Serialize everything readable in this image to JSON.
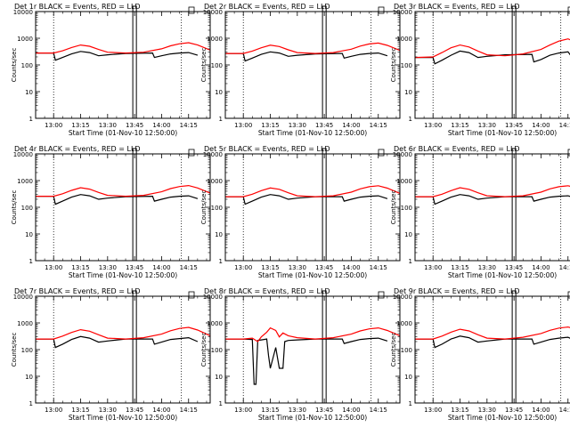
{
  "figure": {
    "background": "#ffffff",
    "events_color": "#000000",
    "lld_color": "#ff0000",
    "tick_times": [
      "13:00",
      "13:15",
      "13:30",
      "13:45",
      "14:00",
      "14:15"
    ],
    "dotted_markers": [
      "13:00",
      "14:11"
    ],
    "gap_band": [
      "13:44",
      "13:46"
    ],
    "ylabel": "Counts/sec",
    "xlabel": "Start Time (01-Nov-10 12:50:00)",
    "y_scale": "log",
    "y_tick_labels": [
      "1",
      "10",
      "100",
      "1000",
      "10000"
    ]
  },
  "chart_data": [
    {
      "type": "line",
      "title": "Det 1r BLACK = Events, RED = LLD",
      "xlabel": "Start Time (01-Nov-10 12:50:00)",
      "ylabel": "Counts/sec",
      "xlim": [
        "12:50",
        "14:27"
      ],
      "ylim": [
        1,
        10000
      ],
      "series": [
        {
          "name": "Events",
          "color": "#000000",
          "x": [
            "12:50",
            "13:00",
            "13:01",
            "13:05",
            "13:10",
            "13:15",
            "13:20",
            "13:25",
            "13:30",
            "13:40",
            "13:55",
            "13:56",
            "14:00",
            "14:05",
            "14:10",
            "14:15",
            "14:20"
          ],
          "y": [
            280,
            280,
            150,
            190,
            260,
            320,
            290,
            220,
            240,
            270,
            280,
            190,
            220,
            260,
            280,
            290,
            230
          ]
        },
        {
          "name": "LLD",
          "color": "#ff0000",
          "x": [
            "12:50",
            "13:00",
            "13:05",
            "13:10",
            "13:15",
            "13:20",
            "13:25",
            "13:30",
            "13:40",
            "13:50",
            "14:00",
            "14:05",
            "14:10",
            "14:15",
            "14:20",
            "14:27"
          ],
          "y": [
            280,
            280,
            340,
            450,
            560,
            500,
            380,
            300,
            280,
            300,
            400,
            520,
            620,
            680,
            560,
            360
          ]
        }
      ]
    },
    {
      "type": "line",
      "title": "Det 2r BLACK = Events, RED = LLD",
      "xlabel": "Start Time (01-Nov-10 12:50:00)",
      "ylabel": "Counts/sec",
      "xlim": [
        "12:50",
        "14:27"
      ],
      "ylim": [
        1,
        10000
      ],
      "series": [
        {
          "name": "Events",
          "color": "#000000",
          "x": [
            "12:50",
            "13:00",
            "13:01",
            "13:05",
            "13:10",
            "13:15",
            "13:20",
            "13:25",
            "13:30",
            "13:40",
            "13:55",
            "13:56",
            "14:00",
            "14:05",
            "14:10",
            "14:15",
            "14:20"
          ],
          "y": [
            270,
            270,
            140,
            180,
            250,
            310,
            280,
            210,
            230,
            260,
            270,
            180,
            210,
            250,
            270,
            280,
            220
          ]
        },
        {
          "name": "LLD",
          "color": "#ff0000",
          "x": [
            "12:50",
            "13:00",
            "13:05",
            "13:10",
            "13:15",
            "13:20",
            "13:25",
            "13:30",
            "13:40",
            "13:50",
            "14:00",
            "14:05",
            "14:10",
            "14:15",
            "14:20",
            "14:27"
          ],
          "y": [
            270,
            270,
            330,
            440,
            550,
            490,
            370,
            290,
            270,
            290,
            390,
            510,
            610,
            660,
            540,
            350
          ]
        }
      ]
    },
    {
      "type": "line",
      "title": "Det 3r BLACK = Events, RED = LLD",
      "xlabel": "Start Time (01-Nov-10 12:50:00)",
      "ylabel": "Counts/sec",
      "xlim": [
        "12:50",
        "14:27"
      ],
      "ylim": [
        1,
        10000
      ],
      "series": [
        {
          "name": "Events",
          "color": "#000000",
          "x": [
            "12:50",
            "13:00",
            "13:01",
            "13:05",
            "13:10",
            "13:15",
            "13:20",
            "13:25",
            "13:30",
            "13:40",
            "13:55",
            "13:56",
            "14:00",
            "14:05",
            "14:10",
            "14:15",
            "14:20"
          ],
          "y": [
            190,
            190,
            110,
            150,
            230,
            330,
            290,
            190,
            210,
            240,
            250,
            130,
            160,
            230,
            280,
            310,
            110
          ]
        },
        {
          "name": "LLD",
          "color": "#ff0000",
          "x": [
            "12:50",
            "13:00",
            "13:05",
            "13:10",
            "13:15",
            "13:20",
            "13:25",
            "13:30",
            "13:40",
            "13:50",
            "14:00",
            "14:05",
            "14:10",
            "14:15",
            "14:20",
            "14:27"
          ],
          "y": [
            190,
            200,
            290,
            440,
            560,
            470,
            330,
            240,
            220,
            260,
            380,
            560,
            780,
            950,
            680,
            360
          ]
        }
      ]
    },
    {
      "type": "line",
      "title": "Det 4r BLACK = Events, RED = LLD",
      "xlabel": "Start Time (01-Nov-10 12:50:00)",
      "ylabel": "Counts/sec",
      "xlim": [
        "12:50",
        "14:27"
      ],
      "ylim": [
        1,
        10000
      ],
      "series": [
        {
          "name": "Events",
          "color": "#000000",
          "x": [
            "12:50",
            "13:00",
            "13:01",
            "13:05",
            "13:10",
            "13:15",
            "13:20",
            "13:25",
            "13:30",
            "13:40",
            "13:55",
            "13:56",
            "14:00",
            "14:05",
            "14:10",
            "14:15",
            "14:20"
          ],
          "y": [
            260,
            260,
            130,
            170,
            240,
            300,
            270,
            200,
            220,
            250,
            260,
            170,
            200,
            240,
            260,
            270,
            210
          ]
        },
        {
          "name": "LLD",
          "color": "#ff0000",
          "x": [
            "12:50",
            "13:00",
            "13:05",
            "13:10",
            "13:15",
            "13:20",
            "13:25",
            "13:30",
            "13:40",
            "13:50",
            "14:00",
            "14:05",
            "14:10",
            "14:15",
            "14:20",
            "14:27"
          ],
          "y": [
            260,
            260,
            320,
            430,
            540,
            480,
            360,
            280,
            260,
            280,
            380,
            500,
            600,
            650,
            530,
            340
          ]
        }
      ]
    },
    {
      "type": "line",
      "title": "Det 5r BLACK = Events, RED = LLD",
      "xlabel": "Start Time (01-Nov-10 12:50:00)",
      "ylabel": "Counts/sec",
      "xlim": [
        "12:50",
        "14:27"
      ],
      "ylim": [
        1,
        10000
      ],
      "series": [
        {
          "name": "Events",
          "color": "#000000",
          "x": [
            "12:50",
            "13:00",
            "13:01",
            "13:05",
            "13:10",
            "13:15",
            "13:20",
            "13:25",
            "13:30",
            "13:40",
            "13:55",
            "13:56",
            "14:00",
            "14:05",
            "14:10",
            "14:15",
            "14:20"
          ],
          "y": [
            250,
            250,
            130,
            170,
            240,
            300,
            270,
            200,
            220,
            250,
            250,
            170,
            200,
            240,
            260,
            270,
            210
          ]
        },
        {
          "name": "LLD",
          "color": "#ff0000",
          "x": [
            "12:50",
            "13:00",
            "13:05",
            "13:10",
            "13:15",
            "13:20",
            "13:25",
            "13:30",
            "13:40",
            "13:50",
            "14:00",
            "14:05",
            "14:10",
            "14:15",
            "14:20",
            "14:27"
          ],
          "y": [
            250,
            250,
            310,
            420,
            530,
            470,
            350,
            270,
            250,
            270,
            370,
            490,
            590,
            640,
            520,
            330
          ]
        }
      ]
    },
    {
      "type": "line",
      "title": "Det 6r BLACK = Events, RED = LLD",
      "xlabel": "Start Time (01-Nov-10 12:50:00)",
      "ylabel": "Counts/sec",
      "xlim": [
        "12:50",
        "14:27"
      ],
      "ylim": [
        1,
        10000
      ],
      "series": [
        {
          "name": "Events",
          "color": "#000000",
          "x": [
            "12:50",
            "13:00",
            "13:01",
            "13:05",
            "13:10",
            "13:15",
            "13:20",
            "13:25",
            "13:30",
            "13:40",
            "13:55",
            "13:56",
            "14:00",
            "14:05",
            "14:10",
            "14:15",
            "14:20"
          ],
          "y": [
            250,
            250,
            130,
            170,
            240,
            300,
            270,
            200,
            220,
            250,
            250,
            170,
            200,
            240,
            260,
            270,
            210
          ]
        },
        {
          "name": "LLD",
          "color": "#ff0000",
          "x": [
            "12:50",
            "13:00",
            "13:05",
            "13:10",
            "13:15",
            "13:20",
            "13:25",
            "13:30",
            "13:40",
            "13:50",
            "14:00",
            "14:05",
            "14:10",
            "14:15",
            "14:20",
            "14:27"
          ],
          "y": [
            250,
            250,
            310,
            420,
            540,
            470,
            350,
            270,
            250,
            270,
            370,
            490,
            590,
            640,
            520,
            330
          ]
        }
      ]
    },
    {
      "type": "line",
      "title": "Det 7r BLACK = Events, RED = LLD",
      "xlabel": "Start Time (01-Nov-10 12:50:00)",
      "ylabel": "Counts/sec",
      "xlim": [
        "12:50",
        "14:27"
      ],
      "ylim": [
        1,
        10000
      ],
      "series": [
        {
          "name": "Events",
          "color": "#000000",
          "x": [
            "12:50",
            "13:00",
            "13:01",
            "13:05",
            "13:10",
            "13:15",
            "13:20",
            "13:25",
            "13:30",
            "13:40",
            "13:55",
            "13:56",
            "14:00",
            "14:05",
            "14:10",
            "14:15",
            "14:20"
          ],
          "y": [
            250,
            250,
            120,
            160,
            240,
            310,
            270,
            190,
            210,
            250,
            250,
            160,
            190,
            240,
            260,
            280,
            200
          ]
        },
        {
          "name": "LLD",
          "color": "#ff0000",
          "x": [
            "12:50",
            "13:00",
            "13:05",
            "13:10",
            "13:15",
            "13:20",
            "13:25",
            "13:30",
            "13:40",
            "13:50",
            "14:00",
            "14:05",
            "14:10",
            "14:15",
            "14:20",
            "14:27"
          ],
          "y": [
            250,
            250,
            320,
            440,
            560,
            490,
            360,
            270,
            250,
            280,
            380,
            510,
            620,
            680,
            540,
            330
          ]
        }
      ]
    },
    {
      "type": "line",
      "title": "Det 8r BLACK = Events, RED = LLD",
      "xlabel": "Start Time (01-Nov-10 12:50:00)",
      "ylabel": "Counts/sec",
      "xlim": [
        "12:50",
        "14:27"
      ],
      "ylim": [
        1,
        10000
      ],
      "series": [
        {
          "name": "Events",
          "color": "#000000",
          "x": [
            "12:50",
            "13:00",
            "13:05",
            "13:06",
            "13:07",
            "13:08",
            "13:10",
            "13:13",
            "13:14",
            "13:15",
            "13:18",
            "13:20",
            "13:22",
            "13:23",
            "13:25",
            "13:30",
            "13:40",
            "13:55",
            "13:56",
            "14:00",
            "14:05",
            "14:10",
            "14:15",
            "14:20"
          ],
          "y": [
            250,
            250,
            240,
            5,
            5,
            220,
            230,
            250,
            60,
            20,
            120,
            20,
            20,
            200,
            220,
            230,
            250,
            250,
            170,
            200,
            240,
            260,
            270,
            210
          ]
        },
        {
          "name": "LLD",
          "color": "#ff0000",
          "x": [
            "12:50",
            "13:00",
            "13:05",
            "13:08",
            "13:10",
            "13:13",
            "13:15",
            "13:18",
            "13:20",
            "13:22",
            "13:25",
            "13:30",
            "13:40",
            "13:50",
            "14:00",
            "14:05",
            "14:10",
            "14:15",
            "14:20",
            "14:27"
          ],
          "y": [
            250,
            250,
            270,
            200,
            300,
            450,
            650,
            520,
            300,
            420,
            330,
            280,
            250,
            280,
            380,
            500,
            600,
            650,
            520,
            330
          ]
        }
      ]
    },
    {
      "type": "line",
      "title": "Det 9r BLACK = Events, RED = LLD",
      "xlabel": "Start Time (01-Nov-10 12:50:00)",
      "ylabel": "Counts/sec",
      "xlim": [
        "12:50",
        "14:27"
      ],
      "ylim": [
        1,
        10000
      ],
      "series": [
        {
          "name": "Events",
          "color": "#000000",
          "x": [
            "12:50",
            "13:00",
            "13:01",
            "13:05",
            "13:10",
            "13:15",
            "13:20",
            "13:25",
            "13:30",
            "13:40",
            "13:55",
            "13:56",
            "14:00",
            "14:05",
            "14:10",
            "14:15",
            "14:20"
          ],
          "y": [
            250,
            250,
            120,
            160,
            250,
            320,
            280,
            190,
            210,
            250,
            250,
            160,
            190,
            240,
            270,
            290,
            200
          ]
        },
        {
          "name": "LLD",
          "color": "#ff0000",
          "x": [
            "12:50",
            "13:00",
            "13:05",
            "13:10",
            "13:15",
            "13:20",
            "13:25",
            "13:30",
            "13:40",
            "13:50",
            "14:00",
            "14:05",
            "14:10",
            "14:15",
            "14:20",
            "14:27"
          ],
          "y": [
            250,
            250,
            320,
            450,
            580,
            500,
            360,
            270,
            250,
            290,
            400,
            530,
            640,
            700,
            560,
            340
          ]
        }
      ]
    }
  ]
}
